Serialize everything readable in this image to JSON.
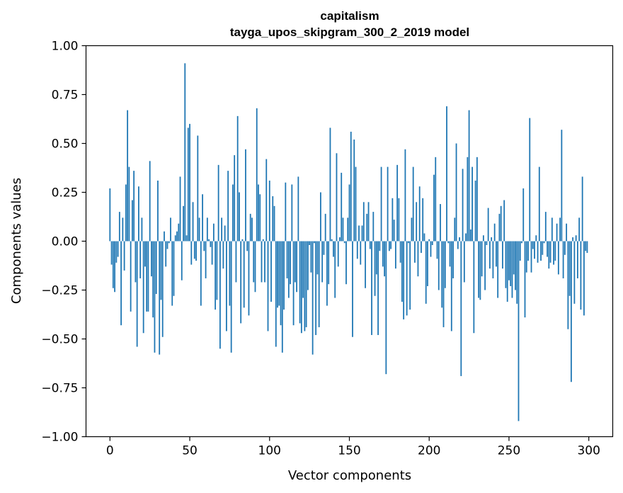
{
  "chart_data": {
    "type": "bar",
    "title": "capitalism",
    "subtitle": "tayga_upos_skipgram_300_2_2019 model",
    "xlabel": "Vector components",
    "ylabel": "Components values",
    "xlim": [
      -15,
      315
    ],
    "ylim": [
      -1.0,
      1.0
    ],
    "xticks": [
      0,
      50,
      100,
      150,
      200,
      250,
      300
    ],
    "xtick_labels": [
      "0",
      "50",
      "100",
      "150",
      "200",
      "250",
      "300"
    ],
    "yticks": [
      1.0,
      0.75,
      0.5,
      0.25,
      0.0,
      -0.25,
      -0.5,
      -0.75,
      -1.0
    ],
    "ytick_labels": [
      "1.00",
      "0.75",
      "0.50",
      "0.25",
      "0.00",
      "−0.25",
      "−0.50",
      "−0.75",
      "−1.00"
    ],
    "grid": false,
    "bar_color": "#1f77b4",
    "x": "indices 0..299",
    "values": [
      0.27,
      -0.12,
      -0.24,
      -0.26,
      -0.11,
      -0.08,
      0.15,
      -0.43,
      0.12,
      -0.15,
      0.29,
      0.67,
      0.38,
      -0.36,
      0.21,
      0.36,
      -0.21,
      -0.54,
      0.28,
      -0.19,
      0.12,
      -0.47,
      -0.13,
      -0.36,
      -0.36,
      0.41,
      -0.18,
      -0.39,
      -0.57,
      -0.27,
      0.31,
      -0.58,
      -0.3,
      -0.49,
      0.05,
      -0.13,
      -0.04,
      -0.01,
      0.12,
      -0.33,
      -0.28,
      0.03,
      0.05,
      0.09,
      0.33,
      -0.2,
      0.18,
      0.91,
      0.03,
      0.58,
      0.6,
      -0.12,
      0.2,
      -0.09,
      -0.1,
      0.54,
      0.12,
      -0.33,
      0.24,
      -0.05,
      -0.19,
      0.12,
      0.01,
      -0.03,
      -0.12,
      0.09,
      -0.35,
      -0.3,
      0.39,
      -0.55,
      0.12,
      -0.14,
      0.08,
      -0.46,
      0.36,
      -0.33,
      -0.57,
      0.29,
      0.44,
      -0.21,
      0.64,
      0.25,
      -0.42,
      0.01,
      -0.34,
      0.47,
      -0.05,
      -0.38,
      0.14,
      0.12,
      -0.21,
      -0.26,
      0.68,
      0.29,
      0.24,
      -0.21,
      0.01,
      -0.21,
      0.42,
      -0.46,
      0.31,
      -0.31,
      0.23,
      0.18,
      -0.54,
      -0.34,
      -0.33,
      -0.43,
      -0.57,
      -0.35,
      0.3,
      -0.19,
      -0.29,
      -0.22,
      0.29,
      -0.43,
      -0.21,
      -0.26,
      0.33,
      -0.42,
      -0.47,
      -0.29,
      -0.46,
      -0.44,
      -0.25,
      -0.02,
      -0.16,
      -0.58,
      -0.01,
      -0.48,
      -0.17,
      -0.44,
      0.25,
      -0.21,
      -0.07,
      0.14,
      -0.33,
      -0.22,
      0.58,
      0.01,
      -0.08,
      -0.29,
      0.45,
      -0.13,
      0.02,
      0.35,
      0.12,
      -0.01,
      -0.22,
      0.12,
      0.29,
      0.56,
      -0.49,
      0.52,
      0.38,
      -0.09,
      0.08,
      -0.12,
      0.08,
      0.2,
      -0.24,
      0.14,
      0.2,
      -0.04,
      -0.48,
      0.15,
      -0.28,
      -0.17,
      -0.48,
      -0.05,
      0.38,
      -0.13,
      -0.18,
      -0.68,
      0.38,
      -0.05,
      -0.04,
      0.22,
      0.11,
      -0.14,
      0.39,
      0.22,
      -0.11,
      -0.31,
      -0.4,
      0.47,
      -0.38,
      -0.01,
      -0.35,
      0.12,
      0.38,
      -0.11,
      0.2,
      -0.18,
      0.28,
      -0.06,
      0.22,
      0.04,
      -0.32,
      -0.23,
      0.01,
      -0.08,
      -0.02,
      0.34,
      0.43,
      -0.09,
      -0.25,
      0.19,
      -0.34,
      -0.44,
      -0.24,
      0.69,
      -0.01,
      -0.13,
      -0.46,
      -0.19,
      0.12,
      0.5,
      -0.04,
      0.02,
      -0.69,
      0.37,
      -0.21,
      0.04,
      0.43,
      0.67,
      0.06,
      0.38,
      -0.47,
      0.31,
      0.43,
      -0.29,
      -0.3,
      -0.18,
      0.03,
      -0.25,
      -0.02,
      0.17,
      -0.14,
      0.02,
      -0.19,
      0.09,
      -0.13,
      -0.29,
      0.14,
      0.18,
      -0.14,
      0.21,
      -0.24,
      -0.31,
      -0.2,
      -0.23,
      -0.29,
      -0.17,
      -0.25,
      -0.32,
      -0.92,
      -0.1,
      -0.01,
      0.27,
      -0.39,
      -0.16,
      -0.1,
      0.63,
      -0.16,
      -0.04,
      -0.09,
      0.03,
      -0.11,
      0.38,
      -0.1,
      -0.07,
      -0.01,
      0.15,
      -0.08,
      -0.14,
      -0.11,
      0.12,
      -0.12,
      -0.1,
      0.09,
      -0.17,
      0.12,
      0.57,
      -0.19,
      -0.07,
      0.09,
      -0.45,
      -0.28,
      -0.72,
      0.02,
      -0.32,
      0.03,
      -0.19,
      0.12,
      -0.35,
      0.33,
      -0.38,
      -0.05,
      -0.06
    ]
  }
}
